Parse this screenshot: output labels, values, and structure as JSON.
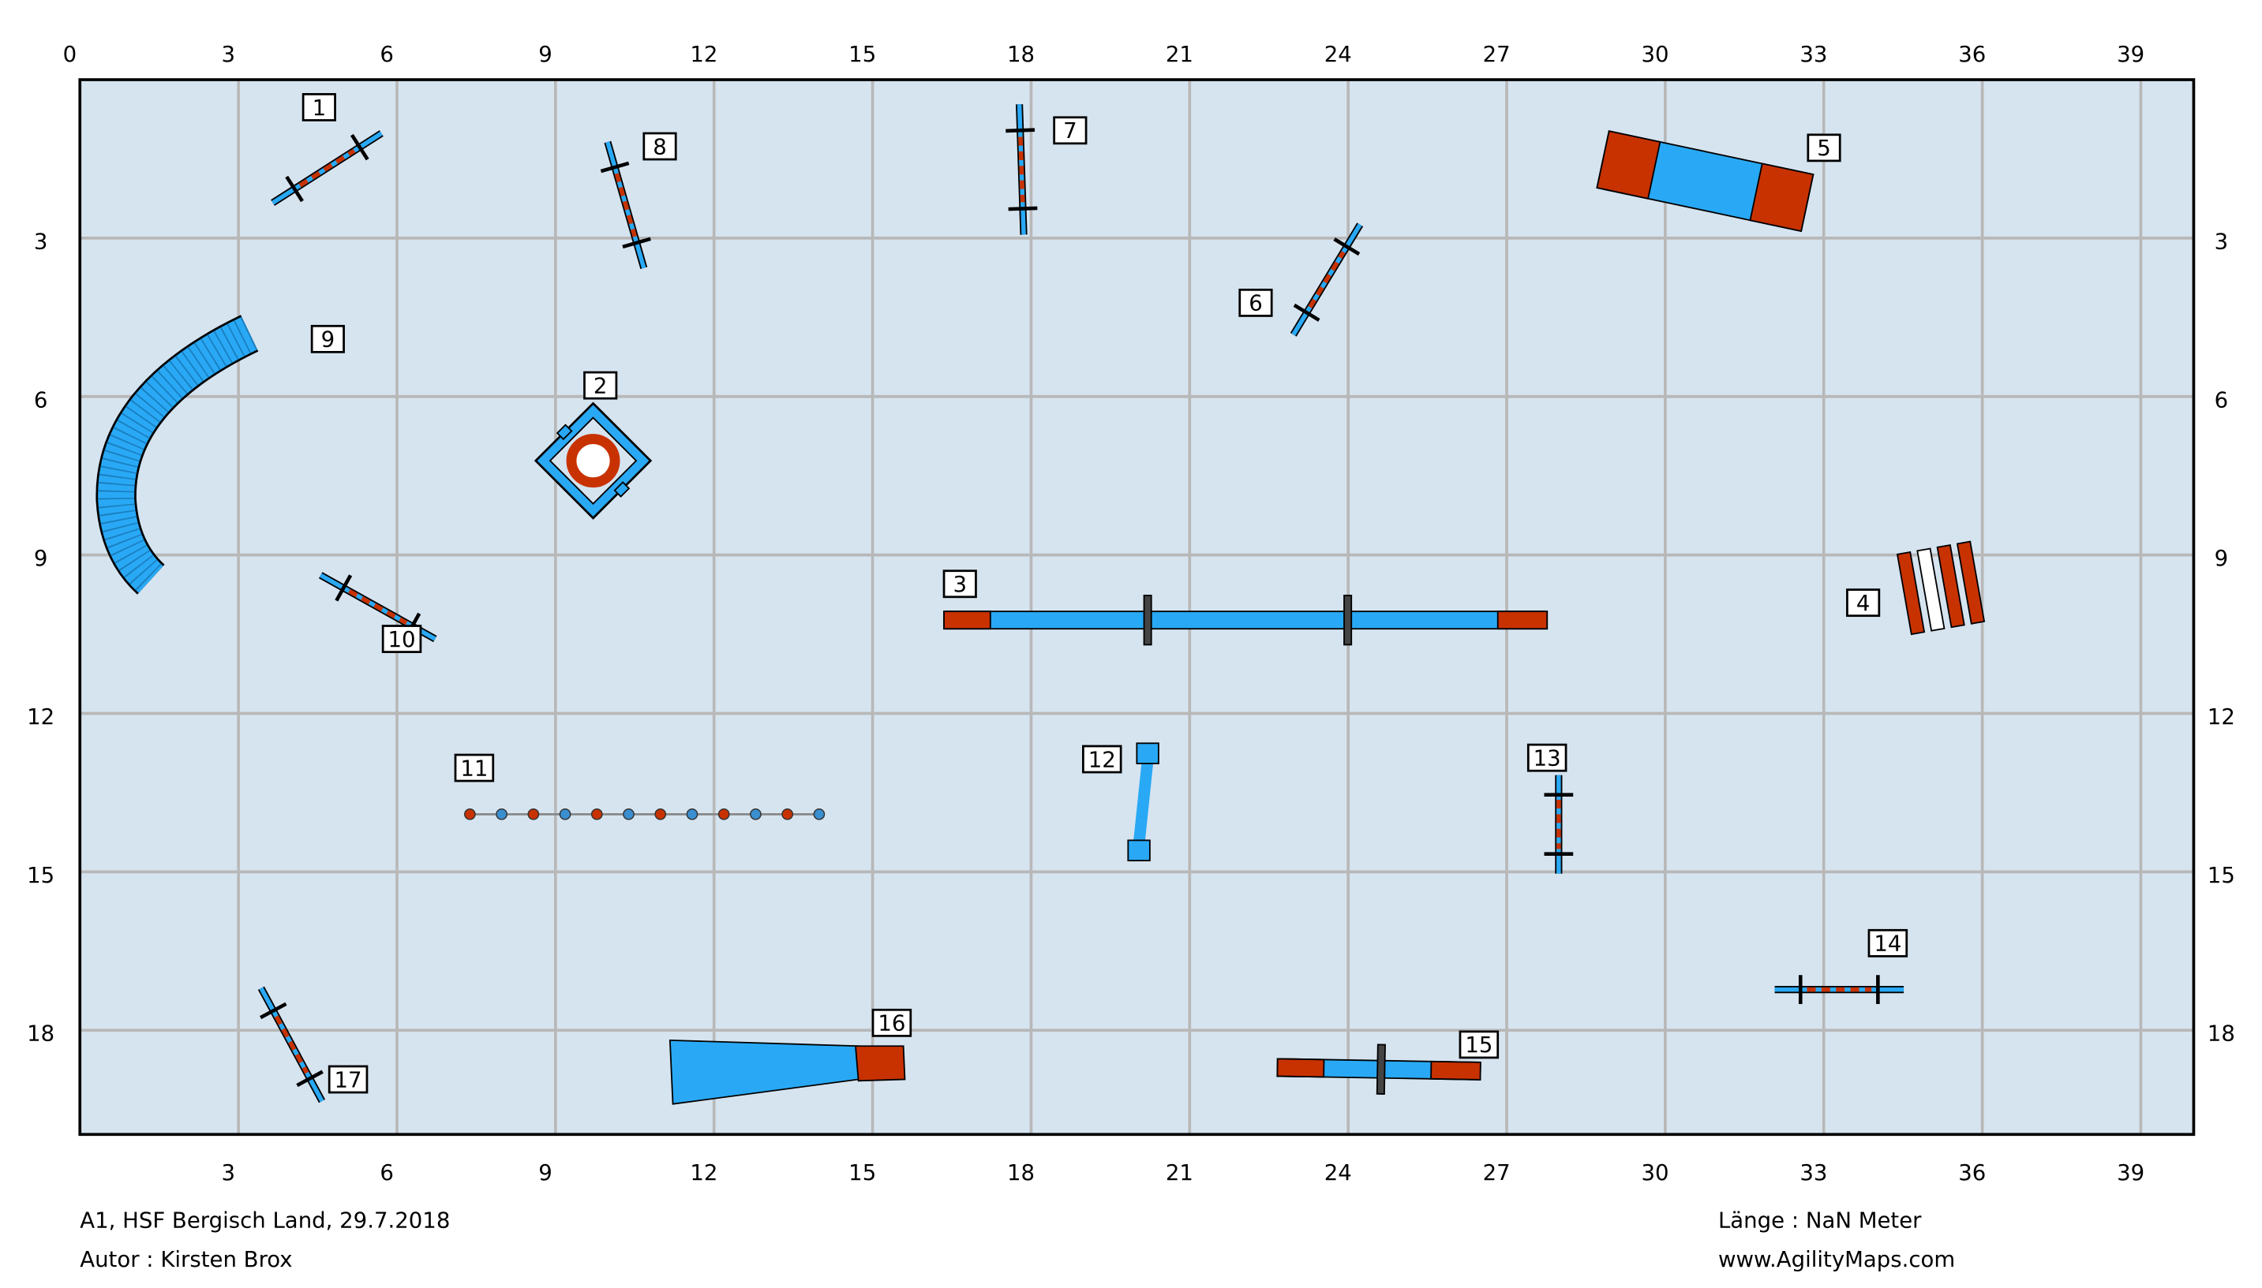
{
  "axes": {
    "top": [
      0,
      3,
      6,
      9,
      12,
      15,
      18,
      21,
      24,
      27,
      30,
      33,
      36,
      39
    ],
    "bottom": [
      3,
      6,
      9,
      12,
      15,
      18,
      21,
      24,
      27,
      30,
      33,
      36,
      39
    ],
    "left": [
      3,
      6,
      9,
      12,
      15,
      18
    ],
    "right": [
      3,
      6,
      9,
      12,
      15,
      18
    ]
  },
  "obstacles": [
    "1",
    "2",
    "3",
    "4",
    "5",
    "6",
    "7",
    "8",
    "9",
    "10",
    "11",
    "12",
    "13",
    "14",
    "15",
    "16",
    "17"
  ],
  "footer": {
    "event": "A1, HSF Bergisch Land, 29.7.2018",
    "author": "Autor : Kirsten Brox",
    "length": "Länge : NaN Meter",
    "site": "www.AgilityMaps.com"
  }
}
